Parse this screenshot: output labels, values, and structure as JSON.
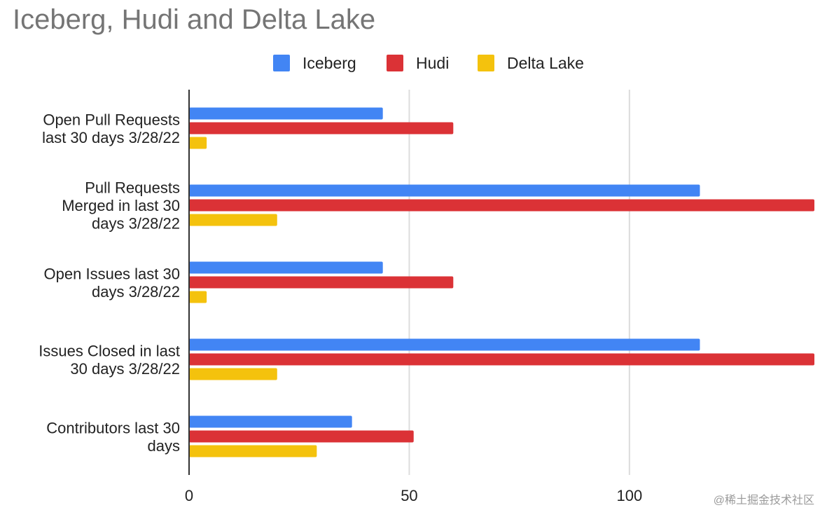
{
  "chart_data": {
    "type": "bar",
    "orientation": "horizontal",
    "title": "Iceberg, Hudi and Delta Lake",
    "categories": [
      [
        "Open Pull Requests",
        "last 30 days 3/28/22"
      ],
      [
        "Pull Requests",
        "Merged in last 30",
        "days 3/28/22"
      ],
      [
        "Open Issues last 30",
        "days 3/28/22"
      ],
      [
        "Issues Closed in last",
        "30 days 3/28/22"
      ],
      [
        "Contributors last 30",
        "days"
      ]
    ],
    "series": [
      {
        "name": "Iceberg",
        "color": "#4285F4",
        "values": [
          44,
          116,
          44,
          116,
          37
        ]
      },
      {
        "name": "Hudi",
        "color": "#DB3236",
        "values": [
          60,
          142,
          60,
          142,
          51
        ]
      },
      {
        "name": "Delta Lake",
        "color": "#F4C20D",
        "values": [
          4,
          20,
          4,
          20,
          29
        ]
      }
    ],
    "xlim": [
      0,
      142
    ],
    "xticks": [
      0,
      50,
      100
    ],
    "grid": true,
    "legend": "top-center",
    "xlabel": "",
    "ylabel": ""
  },
  "watermark": "@稀土掘金技术社区"
}
